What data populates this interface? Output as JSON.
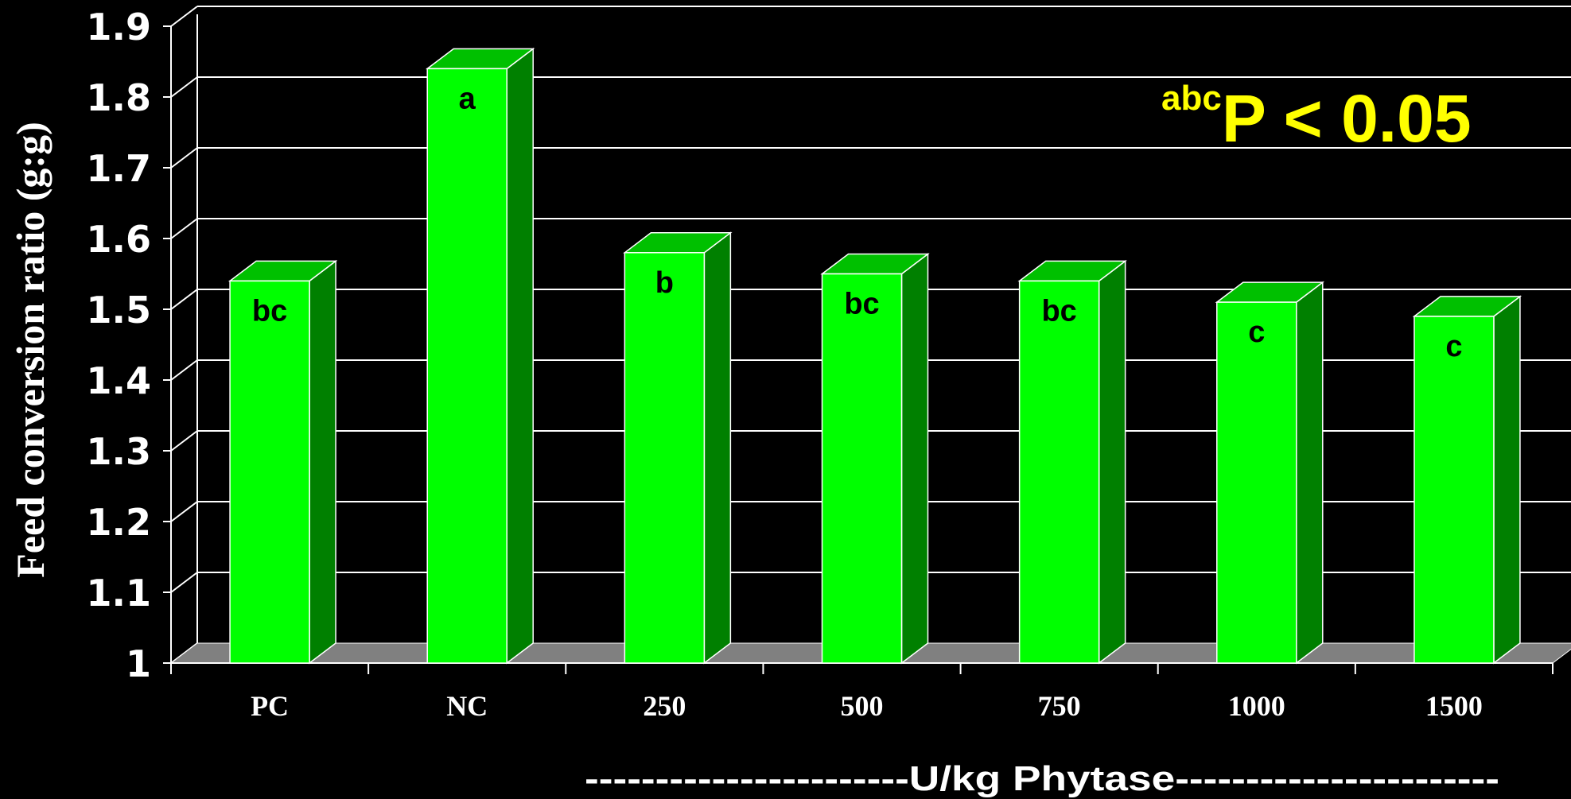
{
  "chart_data": {
    "type": "bar",
    "categories": [
      "PC",
      "NC",
      "250",
      "500",
      "750",
      "1000",
      "1500"
    ],
    "values": [
      1.54,
      1.84,
      1.58,
      1.55,
      1.54,
      1.51,
      1.49
    ],
    "significance_letters": [
      "bc",
      "a",
      "b",
      "bc",
      "bc",
      "c",
      "c"
    ],
    "ylim": [
      1,
      1.9
    ],
    "y_ticks": [
      "1",
      "1.1",
      "1.2",
      "1.3",
      "1.4",
      "1.5",
      "1.6",
      "1.7",
      "1.8",
      "1.9"
    ],
    "ylabel": "Feed conversion ratio (g:g)",
    "xlabel": "-----------------------U/kg Phytase-----------------------",
    "annotation": {
      "superscript": "abc",
      "text": "P < 0.05"
    },
    "grid": true,
    "style": "3d",
    "legend": "none"
  },
  "colors": {
    "background": "#000000",
    "bar_front": "#00ff00",
    "bar_side": "#008000",
    "bar_top": "#00c000",
    "floor": "#808080",
    "grid": "#ffffff",
    "text": "#ffffff",
    "annotation": "#ffff00",
    "letters": "#000000"
  }
}
